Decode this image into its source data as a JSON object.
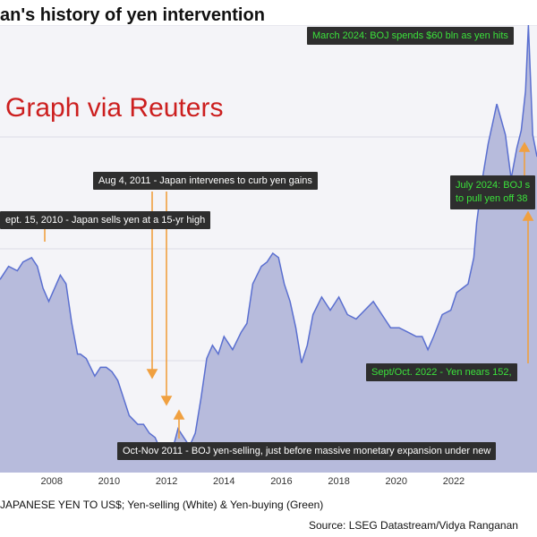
{
  "header": {
    "title": "an's history of yen intervention",
    "watermark": "Graph via Reuters"
  },
  "annotations": {
    "march_2024": "March 2024: BOJ spends $60 bln as yen hits",
    "aug_2011": "Aug 4, 2011 - Japan intervenes to curb yen gains",
    "sept_2010": "ept. 15, 2010 - Japan sells yen at a 15-yr high",
    "july_2024_line1": "July 2024: BOJ s",
    "july_2024_line2": "to pull yen off 38",
    "sept_oct_2022": "Sept/Oct. 2022 - Yen nears 152,",
    "oct_nov_2011": "Oct-Nov 2011 - BOJ yen-selling, just before massive monetary expansion under new"
  },
  "footer": {
    "series_note": "JAPANESE YEN TO US$;   Yen-selling (White) & Yen-buying (Green)",
    "source": "Source: LSEG Datastream/Vidya Ranganan"
  },
  "colors": {
    "area_fill": "#b7bbdc",
    "line": "#5a6fd0",
    "panel_bg": "#f4f4f8",
    "arrow": "#f0a040",
    "box_bg": "#2e2e2e",
    "green_text": "#3be23b",
    "watermark": "#cc1f1f"
  },
  "chart_data": {
    "type": "area",
    "xlabel": "",
    "ylabel": "",
    "grid": true,
    "xlim": [
      2006.2,
      2024.9
    ],
    "ylim": [
      73,
      175
    ],
    "x_ticks": [
      "2008",
      "2010",
      "2012",
      "2014",
      "2016",
      "2018",
      "2020",
      "2022"
    ],
    "series": [
      {
        "x": [
          2006.2,
          2006.5,
          2006.8,
          2007.0,
          2007.3,
          2007.5,
          2007.7,
          2007.9,
          2008.1,
          2008.3,
          2008.5,
          2008.7,
          2008.9,
          2009.0,
          2009.2,
          2009.5,
          2009.7,
          2009.9,
          2010.1,
          2010.3,
          2010.5,
          2010.7,
          2011.0,
          2011.2,
          2011.4,
          2011.6,
          2011.8,
          2012.0,
          2012.2,
          2012.4,
          2012.6,
          2012.8,
          2013.0,
          2013.2,
          2013.4,
          2013.6,
          2013.8,
          2014.0,
          2014.3,
          2014.6,
          2014.8,
          2015.0,
          2015.3,
          2015.5,
          2015.7,
          2015.9,
          2016.1,
          2016.3,
          2016.5,
          2016.7,
          2016.9,
          2017.1,
          2017.4,
          2017.7,
          2018.0,
          2018.3,
          2018.6,
          2018.9,
          2019.2,
          2019.5,
          2019.8,
          2020.1,
          2020.4,
          2020.7,
          2020.9,
          2021.1,
          2021.3,
          2021.6,
          2021.9,
          2022.1,
          2022.3,
          2022.5,
          2022.7,
          2022.8,
          2023.0,
          2023.2,
          2023.5,
          2023.8,
          2024.0,
          2024.2,
          2024.35,
          2024.5,
          2024.6,
          2024.75,
          2024.9
        ],
        "values": [
          117,
          120,
          119,
          121,
          122,
          120,
          115,
          112,
          115,
          118,
          116,
          107,
          100,
          100,
          99,
          95,
          97,
          97,
          96,
          94,
          90,
          86,
          84,
          84,
          82,
          81,
          78,
          77,
          78,
          83,
          81,
          79,
          82,
          90,
          99,
          102,
          100,
          104,
          101,
          105,
          107,
          116,
          120,
          121,
          123,
          122,
          116,
          112,
          106,
          98,
          102,
          109,
          113,
          110,
          113,
          109,
          108,
          110,
          112,
          109,
          106,
          106,
          105,
          104,
          104,
          101,
          104,
          109,
          110,
          114,
          115,
          116,
          122,
          130,
          140,
          148,
          157,
          150,
          140,
          147,
          151,
          160,
          175,
          150,
          145
        ]
      }
    ]
  }
}
